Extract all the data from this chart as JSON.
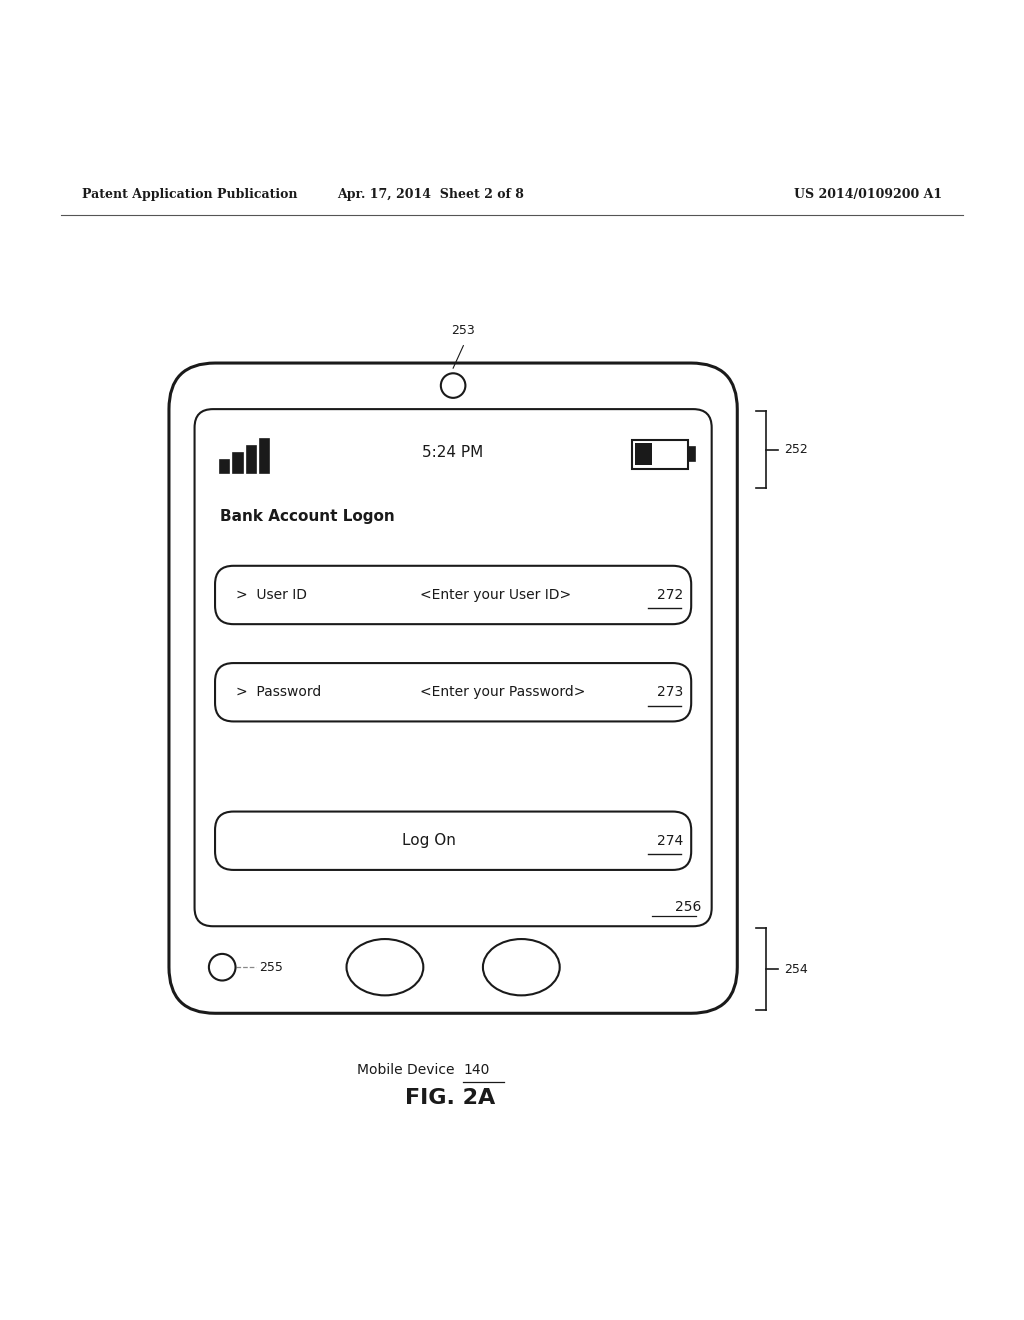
{
  "bg_color": "#ffffff",
  "header_left": "Patent Application Publication",
  "header_mid": "Apr. 17, 2014  Sheet 2 of 8",
  "header_right": "US 2014/0109200 A1",
  "fig_label": "FIG. 2A",
  "mobile_device_label": "Mobile Device",
  "mobile_device_ref": "140",
  "label_253": "253",
  "label_252": "252",
  "label_254": "254",
  "label_255": "255",
  "label_256": "256",
  "label_272": "272",
  "label_273": "273",
  "label_274": "274",
  "time_text": "5:24 PM",
  "bank_title": "Bank Account Logon",
  "field1_label": ">  User ID",
  "field1_hint": "<Enter your User ID>",
  "field2_label": ">  Password",
  "field2_hint": "<Enter your Password>",
  "logon_btn": "Log On"
}
